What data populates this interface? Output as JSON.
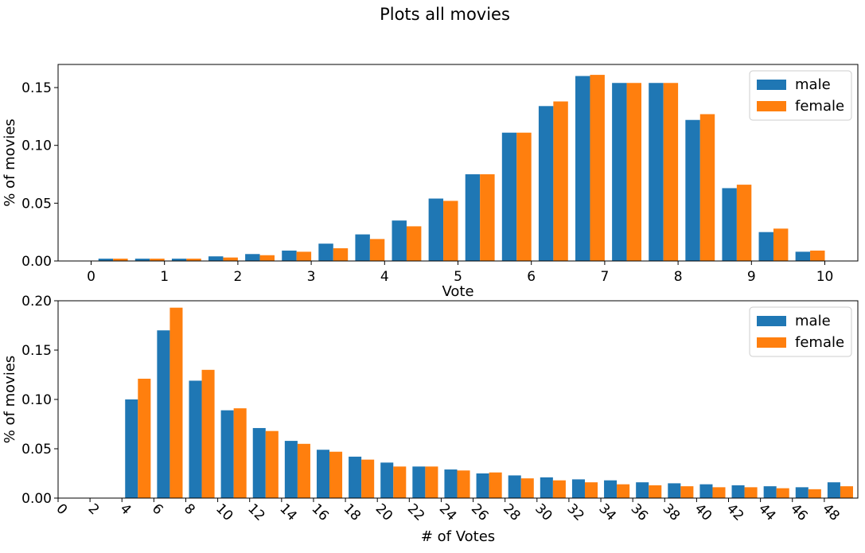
{
  "figure": {
    "title": "Plots all movies"
  },
  "colors": {
    "male": "#1f77b4",
    "female": "#ff7f0e"
  },
  "chart_data": [
    {
      "type": "bar",
      "xlabel": "Vote",
      "ylabel": "% of movies",
      "xlim": [
        -0.45,
        10.45
      ],
      "ylim": [
        0,
        0.17
      ],
      "xticks": [
        0,
        1,
        2,
        3,
        4,
        5,
        6,
        7,
        8,
        9,
        10
      ],
      "yticks": [
        0.0,
        0.05,
        0.1,
        0.15
      ],
      "ytick_labels": [
        "0.00",
        "0.05",
        "0.10",
        "0.15"
      ],
      "bar_width": 0.2,
      "legend": "top-right",
      "x": [
        1,
        2,
        3,
        4,
        5,
        6,
        7,
        8,
        9,
        10
      ],
      "series": [
        {
          "name": "male",
          "offset": 0.1,
          "values": [
            0.002,
            0.002,
            0.006,
            0.015,
            0.035,
            0.075,
            0.134,
            0.154,
            0.122,
            0.025
          ]
        },
        {
          "name": "female",
          "offset": 0.3,
          "values": [
            0.002,
            0.002,
            0.005,
            0.011,
            0.03,
            0.075,
            0.138,
            0.154,
            0.127,
            0.028
          ]
        },
        {
          "name": "male",
          "offset": 0.6,
          "values": [
            0.002,
            0.004,
            0.009,
            0.023,
            0.054,
            0.111,
            0.16,
            0.154,
            0.063,
            0.008
          ]
        },
        {
          "name": "female",
          "offset": 0.8,
          "values": [
            0.002,
            0.003,
            0.008,
            0.019,
            0.052,
            0.111,
            0.161,
            0.154,
            0.066,
            0.009
          ]
        }
      ]
    },
    {
      "type": "bar",
      "xlabel": "# of Votes",
      "ylabel": "% of movies",
      "xlim": [
        0,
        50.1
      ],
      "ylim": [
        0,
        0.2
      ],
      "xticks": [
        0,
        2,
        4,
        6,
        8,
        10,
        12,
        14,
        16,
        18,
        20,
        22,
        24,
        26,
        28,
        30,
        32,
        34,
        36,
        38,
        40,
        42,
        44,
        46,
        48
      ],
      "yticks": [
        0.0,
        0.05,
        0.1,
        0.15,
        0.2
      ],
      "ytick_labels": [
        "0.00",
        "0.05",
        "0.10",
        "0.15",
        "0.20"
      ],
      "bar_width": 0.8,
      "legend": "top-right",
      "x": [
        5,
        7,
        9,
        11,
        13,
        15,
        17,
        19,
        21,
        23,
        25,
        27,
        29,
        31,
        33,
        35,
        37,
        39,
        41,
        43,
        45,
        47,
        49
      ],
      "series": [
        {
          "name": "male",
          "values": [
            0.1,
            0.17,
            0.119,
            0.089,
            0.071,
            0.058,
            0.049,
            0.042,
            0.036,
            0.032,
            0.029,
            0.025,
            0.023,
            0.021,
            0.019,
            0.018,
            0.016,
            0.015,
            0.014,
            0.013,
            0.012,
            0.011,
            0.016
          ]
        },
        {
          "name": "female",
          "values": [
            0.121,
            0.193,
            0.13,
            0.091,
            0.068,
            0.055,
            0.047,
            0.039,
            0.032,
            0.032,
            0.028,
            0.026,
            0.02,
            0.018,
            0.016,
            0.014,
            0.013,
            0.012,
            0.011,
            0.011,
            0.01,
            0.009,
            0.012
          ]
        }
      ]
    }
  ]
}
